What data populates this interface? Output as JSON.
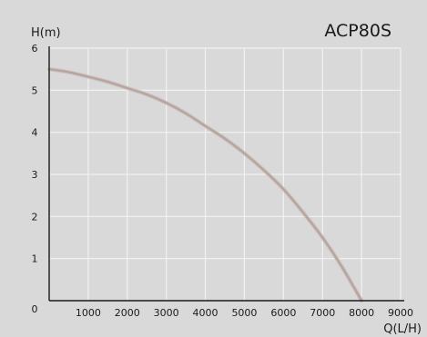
{
  "chart_data": {
    "type": "line",
    "title": "ACP80S",
    "xlabel": "Q(L/H)",
    "ylabel": "H(m)",
    "xlim": [
      0,
      9000
    ],
    "ylim": [
      0,
      6
    ],
    "x_ticks": [
      "1000",
      "2000",
      "3000",
      "4000",
      "5000",
      "6000",
      "7000",
      "8000",
      "9000"
    ],
    "y_ticks": [
      "0",
      "1",
      "2",
      "3",
      "4",
      "5",
      "6"
    ],
    "grid": true,
    "series": [
      {
        "x": [
          0,
          500,
          1000,
          1500,
          2000,
          2500,
          3000,
          3500,
          4000,
          4500,
          5000,
          5500,
          6000,
          6500,
          7000,
          7500,
          8000
        ],
        "y": [
          5.5,
          5.43,
          5.32,
          5.2,
          5.05,
          4.9,
          4.7,
          4.45,
          4.15,
          3.85,
          3.5,
          3.1,
          2.65,
          2.1,
          1.5,
          0.8,
          0
        ],
        "color": "#b7a5a0"
      }
    ],
    "colors": {
      "background": "#d9d9d9",
      "grid": "#f2f2f2",
      "axis": "#1a1a1a",
      "text": "#1a1a1a"
    }
  }
}
